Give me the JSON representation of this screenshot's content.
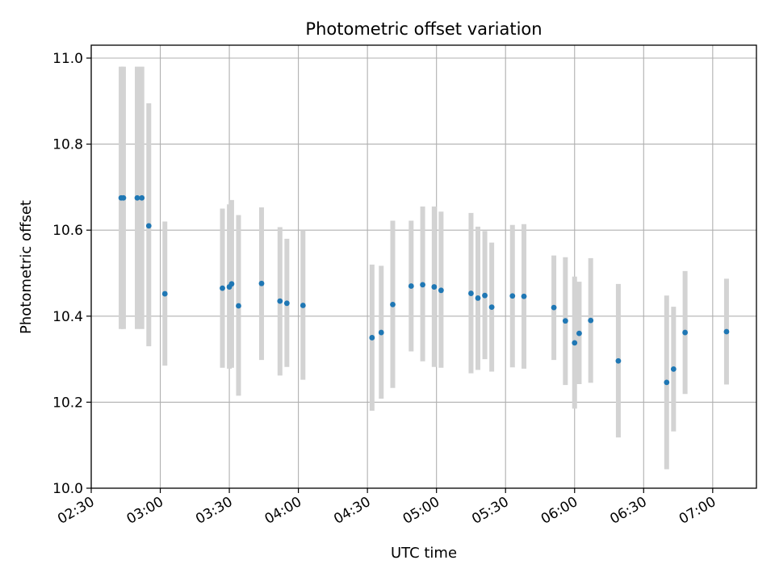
{
  "chart_data": {
    "type": "scatter",
    "title": "Photometric offset variation",
    "xlabel": "UTC time",
    "ylabel": "Photometric offset",
    "x_ticks": [
      "02:30",
      "03:00",
      "03:30",
      "04:00",
      "04:30",
      "05:00",
      "05:30",
      "06:00",
      "06:30",
      "07:00"
    ],
    "y_ticks": [
      "10.0",
      "10.2",
      "10.4",
      "10.6",
      "10.8",
      "11.0"
    ],
    "xlim": [
      "02:30",
      "07:19"
    ],
    "ylim": [
      10.0,
      11.03
    ],
    "grid": true,
    "colors": {
      "points": "#1f77b4",
      "error_bars": "#d3d3d3",
      "grid": "#b0b0b0"
    },
    "points": [
      {
        "x": "02:43",
        "y": 10.675,
        "ymin": 10.37,
        "ymax": 10.98
      },
      {
        "x": "02:44",
        "y": 10.675,
        "ymin": 10.37,
        "ymax": 10.98
      },
      {
        "x": "02:50",
        "y": 10.675,
        "ymin": 10.37,
        "ymax": 10.98
      },
      {
        "x": "02:52",
        "y": 10.675,
        "ymin": 10.37,
        "ymax": 10.98
      },
      {
        "x": "02:55",
        "y": 10.61,
        "ymin": 10.33,
        "ymax": 10.895
      },
      {
        "x": "03:02",
        "y": 10.452,
        "ymin": 10.285,
        "ymax": 10.62
      },
      {
        "x": "03:27",
        "y": 10.465,
        "ymin": 10.28,
        "ymax": 10.65
      },
      {
        "x": "03:30",
        "y": 10.468,
        "ymin": 10.278,
        "ymax": 10.66
      },
      {
        "x": "03:31",
        "y": 10.475,
        "ymin": 10.28,
        "ymax": 10.67
      },
      {
        "x": "03:34",
        "y": 10.424,
        "ymin": 10.215,
        "ymax": 10.635
      },
      {
        "x": "03:44",
        "y": 10.476,
        "ymin": 10.298,
        "ymax": 10.653
      },
      {
        "x": "03:52",
        "y": 10.435,
        "ymin": 10.262,
        "ymax": 10.607
      },
      {
        "x": "03:55",
        "y": 10.43,
        "ymin": 10.282,
        "ymax": 10.58
      },
      {
        "x": "04:02",
        "y": 10.425,
        "ymin": 10.252,
        "ymax": 10.6
      },
      {
        "x": "04:32",
        "y": 10.35,
        "ymin": 10.18,
        "ymax": 10.52
      },
      {
        "x": "04:36",
        "y": 10.362,
        "ymin": 10.208,
        "ymax": 10.517
      },
      {
        "x": "04:41",
        "y": 10.427,
        "ymin": 10.233,
        "ymax": 10.622
      },
      {
        "x": "04:49",
        "y": 10.47,
        "ymin": 10.318,
        "ymax": 10.622
      },
      {
        "x": "04:54",
        "y": 10.473,
        "ymin": 10.295,
        "ymax": 10.655
      },
      {
        "x": "04:59",
        "y": 10.468,
        "ymin": 10.282,
        "ymax": 10.655
      },
      {
        "x": "05:02",
        "y": 10.46,
        "ymin": 10.28,
        "ymax": 10.643
      },
      {
        "x": "05:15",
        "y": 10.453,
        "ymin": 10.267,
        "ymax": 10.64
      },
      {
        "x": "05:18",
        "y": 10.442,
        "ymin": 10.275,
        "ymax": 10.608
      },
      {
        "x": "05:21",
        "y": 10.448,
        "ymin": 10.3,
        "ymax": 10.598
      },
      {
        "x": "05:24",
        "y": 10.421,
        "ymin": 10.271,
        "ymax": 10.571
      },
      {
        "x": "05:33",
        "y": 10.447,
        "ymin": 10.281,
        "ymax": 10.612
      },
      {
        "x": "05:38",
        "y": 10.446,
        "ymin": 10.278,
        "ymax": 10.614
      },
      {
        "x": "05:51",
        "y": 10.42,
        "ymin": 10.298,
        "ymax": 10.541
      },
      {
        "x": "05:56",
        "y": 10.389,
        "ymin": 10.24,
        "ymax": 10.537
      },
      {
        "x": "06:00",
        "y": 10.338,
        "ymin": 10.185,
        "ymax": 10.492
      },
      {
        "x": "06:02",
        "y": 10.36,
        "ymin": 10.242,
        "ymax": 10.48
      },
      {
        "x": "06:07",
        "y": 10.39,
        "ymin": 10.245,
        "ymax": 10.535
      },
      {
        "x": "06:19",
        "y": 10.296,
        "ymin": 10.118,
        "ymax": 10.475
      },
      {
        "x": "06:40",
        "y": 10.246,
        "ymin": 10.044,
        "ymax": 10.448
      },
      {
        "x": "06:43",
        "y": 10.277,
        "ymin": 10.132,
        "ymax": 10.422
      },
      {
        "x": "06:48",
        "y": 10.362,
        "ymin": 10.219,
        "ymax": 10.505
      },
      {
        "x": "07:06",
        "y": 10.364,
        "ymin": 10.241,
        "ymax": 10.487
      }
    ]
  }
}
